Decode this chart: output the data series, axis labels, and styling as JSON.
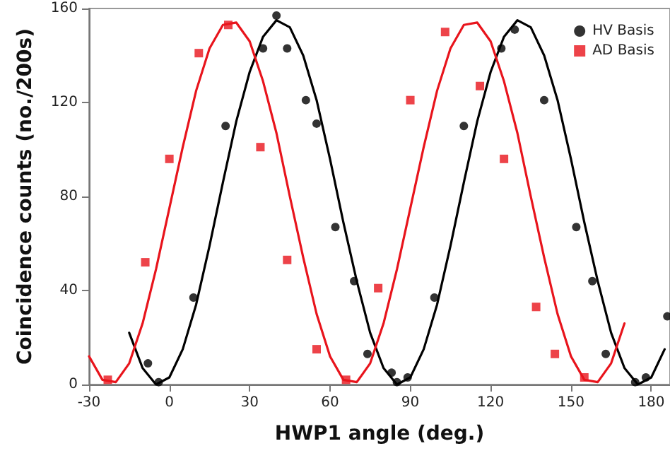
{
  "chart_data": {
    "type": "scatter",
    "xlabel": "HWP1 angle (deg.)",
    "ylabel": "Coincidence counts (no./200s)",
    "xlim": [
      -30,
      187
    ],
    "xticks": [
      -30,
      0,
      30,
      60,
      90,
      120,
      150,
      180
    ],
    "ylim": [
      0,
      160
    ],
    "yticks": [
      0,
      40,
      80,
      120,
      160
    ],
    "grid": false,
    "legend": "top right",
    "series": [
      {
        "type": "line",
        "color": "#000000",
        "marker": "none",
        "line_style": "solid",
        "x": [
          -15,
          -10,
          -5,
          0,
          5,
          10,
          15,
          20,
          25,
          30,
          35,
          40,
          45,
          50,
          55,
          60,
          65,
          70,
          75,
          80,
          85,
          90,
          95,
          100,
          105,
          110,
          115,
          120,
          125,
          130,
          135,
          140,
          145,
          150,
          155,
          160,
          165,
          170,
          175,
          180,
          185
        ],
        "values": [
          22,
          7,
          0,
          3,
          15,
          34,
          59,
          86,
          112,
          133,
          148,
          155,
          152,
          140,
          121,
          96,
          69,
          44,
          22,
          7,
          0,
          3,
          15,
          34,
          59,
          86,
          112,
          133,
          148,
          155,
          152,
          140,
          121,
          96,
          69,
          44,
          22,
          7,
          0,
          3,
          15
        ]
      },
      {
        "type": "line",
        "color": "#e8141c",
        "marker": "none",
        "line_style": "solid",
        "x": [
          -30,
          -25,
          -20,
          -15,
          -10,
          -5,
          0,
          5,
          10,
          15,
          20,
          25,
          30,
          35,
          40,
          45,
          50,
          55,
          60,
          65,
          70,
          75,
          80,
          85,
          90,
          95,
          100,
          105,
          110,
          115,
          120,
          125,
          130,
          135,
          140,
          145,
          150,
          155,
          160,
          165,
          170
        ],
        "values": [
          12,
          2,
          1,
          9,
          26,
          49,
          75,
          101,
          125,
          143,
          153,
          154,
          146,
          129,
          107,
          80,
          54,
          30,
          12,
          2,
          1,
          9,
          26,
          49,
          75,
          101,
          125,
          143,
          153,
          154,
          146,
          129,
          107,
          80,
          54,
          30,
          12,
          2,
          1,
          9,
          26
        ]
      },
      {
        "name": "HV Basis",
        "color": "#000000",
        "marker": "circle",
        "x": [
          -8,
          -4,
          9,
          21,
          35,
          40,
          44,
          51,
          55,
          62,
          69,
          74,
          83,
          85,
          89,
          99,
          110,
          124,
          129,
          140,
          152,
          158,
          163,
          174,
          178,
          186
        ],
        "values": [
          9,
          1,
          37,
          110,
          143,
          157,
          143,
          121,
          111,
          67,
          44,
          13,
          5,
          1,
          3,
          37,
          110,
          143,
          151,
          121,
          67,
          44,
          13,
          1,
          3,
          29
        ]
      },
      {
        "name": "AD Basis",
        "color": "#e8141c",
        "marker": "square",
        "x": [
          -23,
          -9,
          0,
          11,
          22,
          34,
          44,
          55,
          66,
          78,
          90,
          103,
          116,
          125,
          137,
          144,
          155
        ],
        "values": [
          2,
          52,
          96,
          141,
          153,
          101,
          53,
          15,
          2,
          41,
          121,
          150,
          127,
          96,
          33,
          13,
          3
        ]
      }
    ]
  }
}
